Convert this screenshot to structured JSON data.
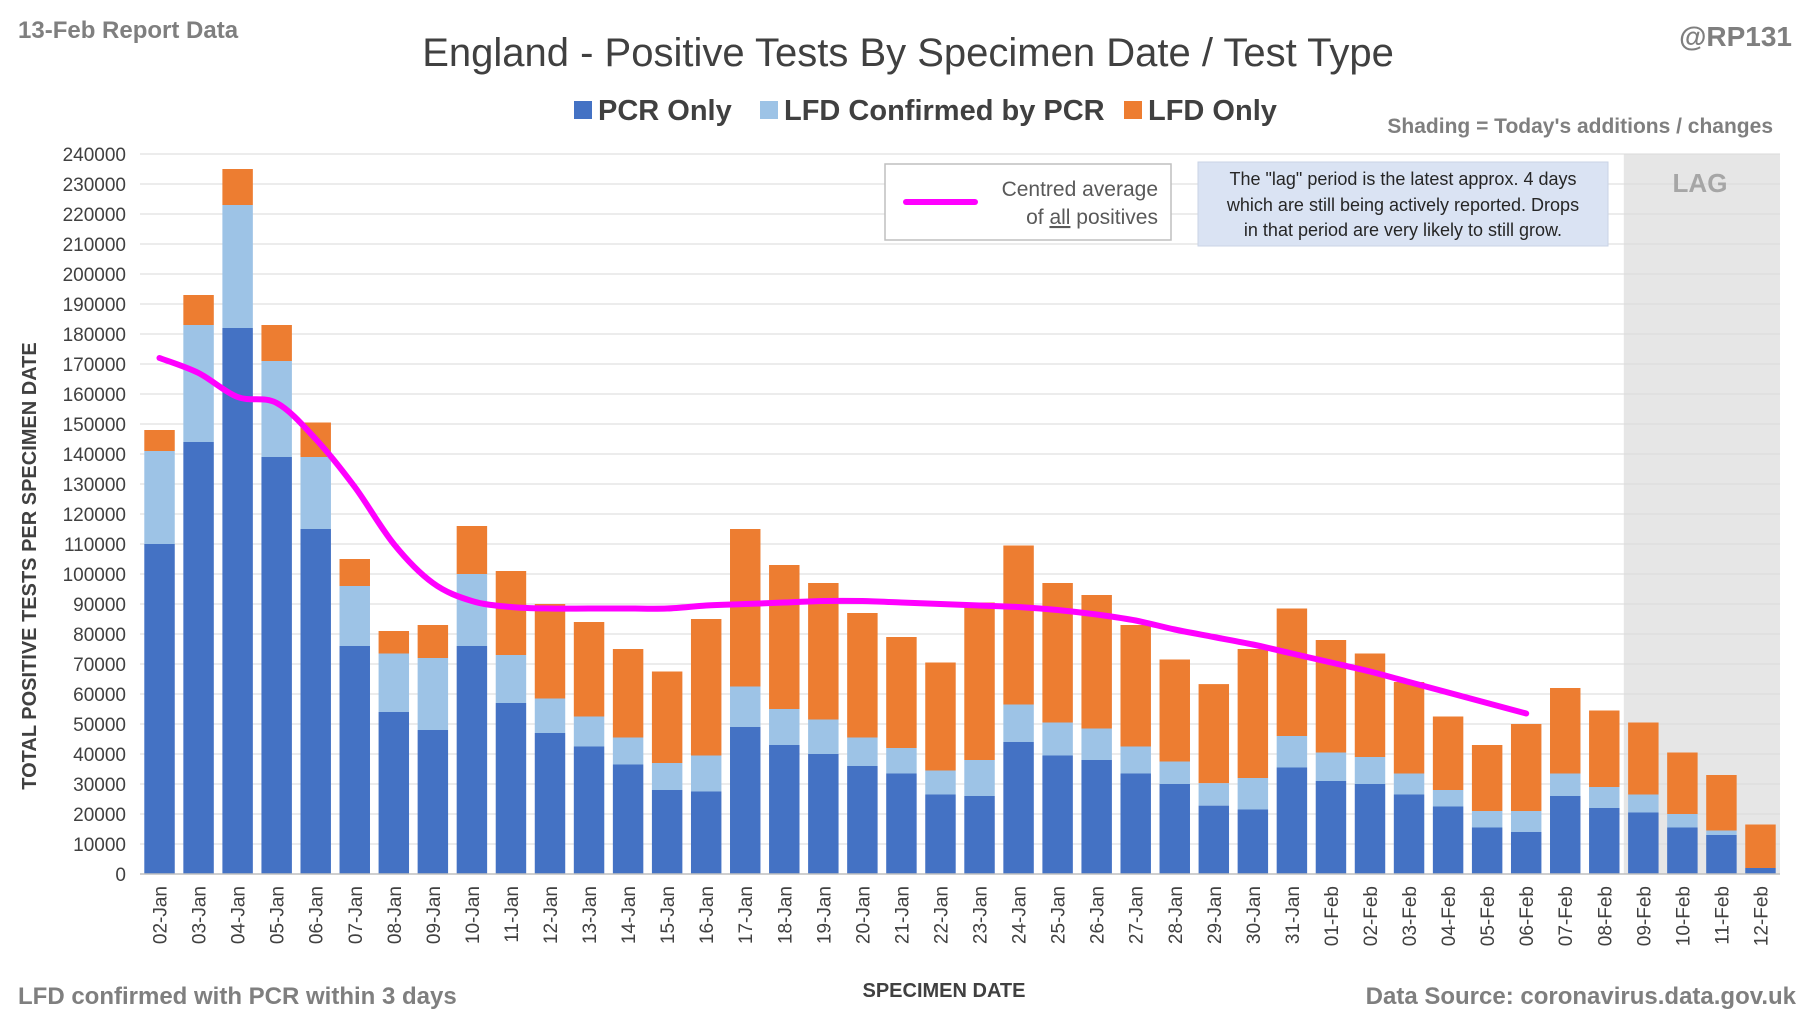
{
  "report_date": "13-Feb Report Data",
  "handle": "@RP131",
  "footer_left": "LFD confirmed with PCR within 3 days",
  "footer_right": "Data Source: coronavirus.data.gov.uk",
  "shading_note": "Shading = Today's additions / changes",
  "lag_label": "LAG",
  "lag_note": [
    "The \"lag\" period is the latest approx. 4 days",
    "which are still being actively reported. Drops",
    "in that period are very likely to still grow."
  ],
  "avg_legend": {
    "line1": "Centred average",
    "line2_prefix": "of ",
    "line2_underlined": "all",
    "line2_suffix": " positives"
  },
  "colors": {
    "pcr": "#4472c4",
    "lfd_confirmed": "#9dc3e6",
    "lfd_only": "#ed7d31",
    "average": "#ff00ff",
    "lag_shade": "#e6e6e6"
  },
  "chart_data": {
    "type": "bar",
    "stacked": true,
    "title": "England - Positive Tests By Specimen Date / Test Type",
    "xlabel": "SPECIMEN DATE",
    "ylabel": "TOTAL POSITIVE TESTS PER SPECIMEN DATE",
    "ylim": [
      0,
      240000
    ],
    "ytick_step": 10000,
    "grid": true,
    "legend_position": "top",
    "categories": [
      "02-Jan",
      "03-Jan",
      "04-Jan",
      "05-Jan",
      "06-Jan",
      "07-Jan",
      "08-Jan",
      "09-Jan",
      "10-Jan",
      "11-Jan",
      "12-Jan",
      "13-Jan",
      "14-Jan",
      "15-Jan",
      "16-Jan",
      "17-Jan",
      "18-Jan",
      "19-Jan",
      "20-Jan",
      "21-Jan",
      "22-Jan",
      "23-Jan",
      "24-Jan",
      "25-Jan",
      "26-Jan",
      "27-Jan",
      "28-Jan",
      "29-Jan",
      "30-Jan",
      "31-Jan",
      "01-Feb",
      "02-Feb",
      "03-Feb",
      "04-Feb",
      "05-Feb",
      "06-Feb",
      "07-Feb",
      "08-Feb",
      "09-Feb",
      "10-Feb",
      "11-Feb",
      "12-Feb"
    ],
    "series": [
      {
        "name": "PCR Only",
        "values": [
          110000,
          144000,
          182000,
          139000,
          115000,
          76000,
          54000,
          48000,
          76000,
          57000,
          47000,
          42500,
          36500,
          28000,
          27500,
          49000,
          43000,
          40000,
          36000,
          33500,
          26500,
          26000,
          44000,
          39500,
          38000,
          33500,
          30000,
          22800,
          21500,
          35500,
          31000,
          30000,
          26500,
          22500,
          15500,
          14000,
          26000,
          22000,
          20500,
          15500,
          13000,
          2000
        ]
      },
      {
        "name": "LFD Confirmed by PCR",
        "values": [
          31000,
          39000,
          41000,
          32000,
          24000,
          20000,
          19500,
          24000,
          24000,
          16000,
          11500,
          10000,
          9000,
          9000,
          12000,
          13500,
          12000,
          11500,
          9500,
          8500,
          8000,
          12000,
          12500,
          11000,
          10500,
          9000,
          7500,
          7500,
          10500,
          10500,
          9500,
          9000,
          7000,
          5500,
          5500,
          7000,
          7500,
          7000,
          6000,
          4500,
          1500,
          0
        ]
      },
      {
        "name": "LFD Only",
        "values": [
          7000,
          10000,
          12000,
          12000,
          11500,
          9000,
          7500,
          11000,
          16000,
          28000,
          31500,
          31500,
          29500,
          30500,
          45500,
          52500,
          48000,
          45500,
          41500,
          37000,
          36000,
          52500,
          53000,
          46500,
          44500,
          40500,
          34000,
          33000,
          43000,
          42500,
          37500,
          34500,
          30500,
          24500,
          22000,
          29000,
          28500,
          25500,
          24000,
          20500,
          18500,
          14500
        ]
      },
      {
        "name": "Centred average of all positives",
        "type": "line",
        "values": [
          172000,
          167000,
          159000,
          157000,
          145000,
          129000,
          110000,
          97000,
          91000,
          89000,
          88500,
          88500,
          88500,
          88500,
          89500,
          90000,
          90500,
          91000,
          91000,
          90500,
          90000,
          89500,
          89000,
          88000,
          86500,
          84500,
          81500,
          79000,
          76500,
          73500,
          70500,
          67500,
          64000,
          60500,
          57000,
          53500,
          null,
          null,
          null,
          null,
          null,
          null
        ]
      }
    ],
    "lag_categories": [
      "09-Feb",
      "10-Feb",
      "11-Feb",
      "12-Feb"
    ]
  }
}
